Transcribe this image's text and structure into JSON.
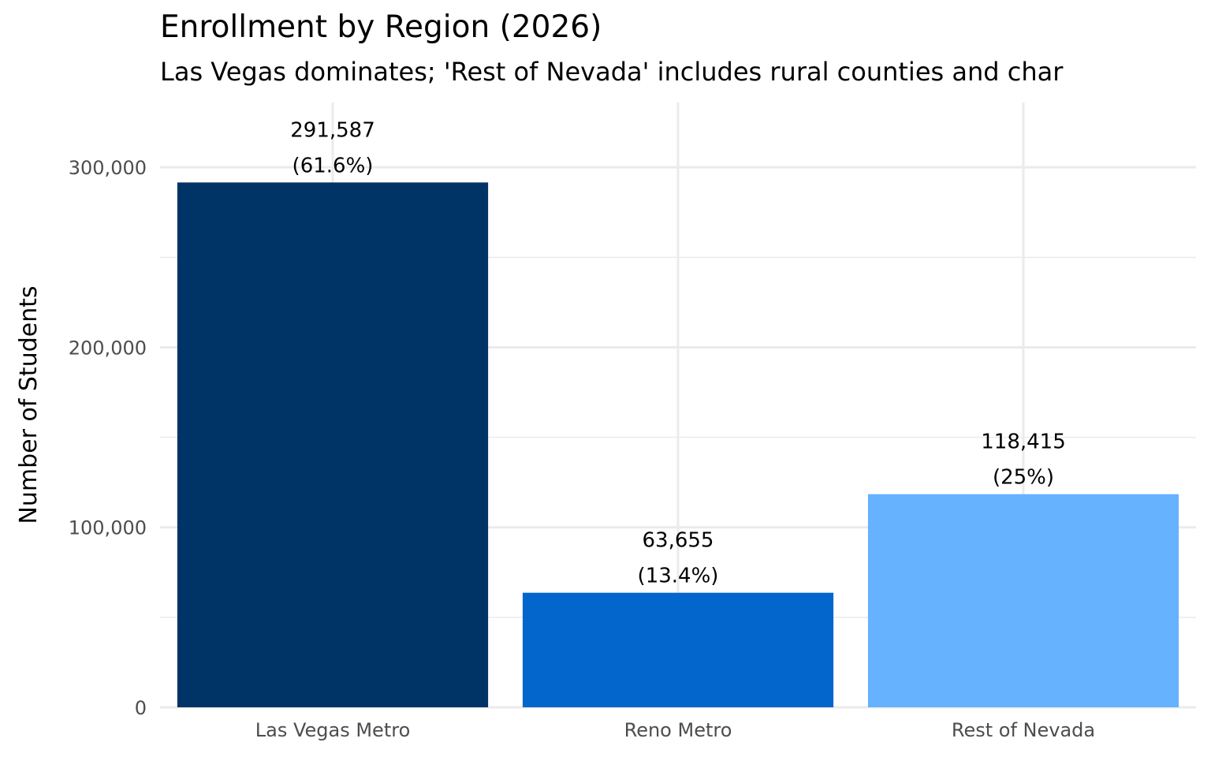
{
  "chart_data": {
    "type": "bar",
    "title": "Enrollment by Region (2026)",
    "subtitle": "Las Vegas dominates; 'Rest of Nevada' includes rural counties and char",
    "xlabel": "",
    "ylabel": "Number of Students",
    "categories": [
      "Las Vegas Metro",
      "Reno Metro",
      "Rest of Nevada"
    ],
    "values": [
      291587,
      63655,
      118415
    ],
    "value_labels": [
      "291,587",
      "63,655",
      "118,415"
    ],
    "percent_labels": [
      "(61.6%)",
      "(13.4%)",
      "(25%)"
    ],
    "colors": [
      "#003366",
      "#0366CC",
      "#66B2FF"
    ],
    "ylim": [
      0,
      336000
    ],
    "yticks": [
      0,
      100000,
      200000,
      300000
    ],
    "ytick_labels": [
      "0",
      "100,000",
      "200,000",
      "300,000"
    ],
    "grid": true,
    "legend": "none"
  }
}
